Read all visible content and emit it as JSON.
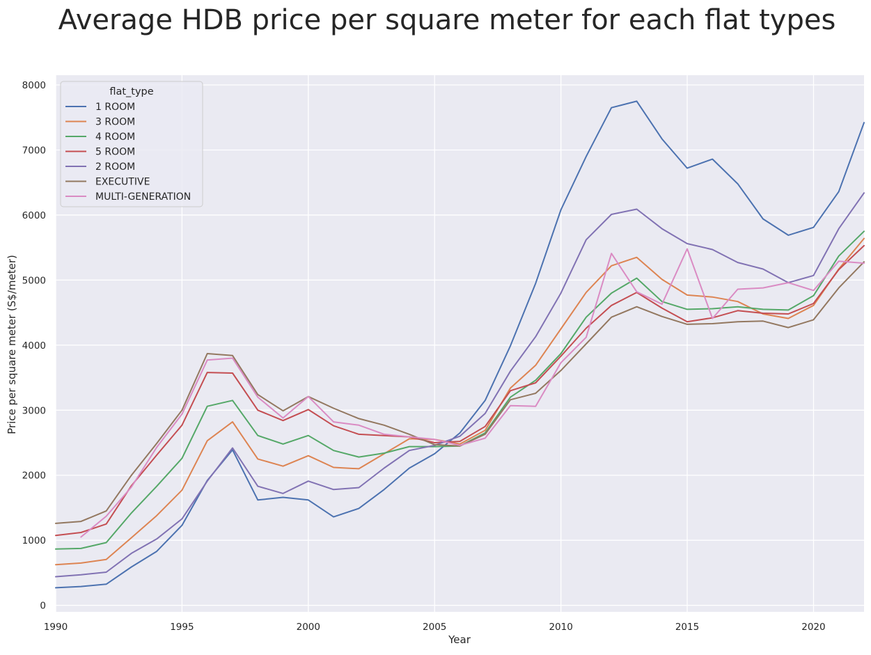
{
  "chart_data": {
    "type": "line",
    "title": "Average HDB price per square meter for each flat types",
    "xlabel": "Year",
    "ylabel": "Price per square meter (S$/meter)",
    "xlim": [
      1990,
      2022
    ],
    "ylim": [
      -100,
      8150
    ],
    "x_ticks": [
      1990,
      1995,
      2000,
      2005,
      2010,
      2015,
      2020
    ],
    "y_ticks": [
      0,
      1000,
      2000,
      3000,
      4000,
      5000,
      6000,
      7000,
      8000
    ],
    "grid": true,
    "legend_title": "flat_type",
    "legend_position": "top-left",
    "x": [
      1990,
      1991,
      1992,
      1993,
      1994,
      1995,
      1996,
      1997,
      1998,
      1999,
      2000,
      2001,
      2002,
      2003,
      2004,
      2005,
      2006,
      2007,
      2008,
      2009,
      2010,
      2011,
      2012,
      2013,
      2014,
      2015,
      2016,
      2017,
      2018,
      2019,
      2020,
      2021,
      2022
    ],
    "series": [
      {
        "name": "1 ROOM",
        "color": "#4c72b0",
        "values": [
          270,
          290,
          325,
          590,
          830,
          1230,
          1920,
          2390,
          1620,
          1660,
          1620,
          1360,
          1490,
          1780,
          2110,
          2330,
          2650,
          3150,
          3990,
          4950,
          6080,
          6900,
          7650,
          7750,
          7170,
          6720,
          6860,
          6480,
          5940,
          5690,
          5810,
          6360,
          7420
        ]
      },
      {
        "name": "3 ROOM",
        "color": "#dd8452",
        "values": [
          625,
          650,
          705,
          1040,
          1380,
          1770,
          2530,
          2820,
          2250,
          2140,
          2300,
          2120,
          2100,
          2330,
          2560,
          2550,
          2480,
          2690,
          3340,
          3690,
          4250,
          4810,
          5220,
          5350,
          5010,
          4770,
          4740,
          4670,
          4480,
          4410,
          4610,
          5170,
          5640
        ]
      },
      {
        "name": "4 ROOM",
        "color": "#55a868",
        "values": [
          865,
          875,
          965,
          1420,
          1830,
          2260,
          3060,
          3150,
          2610,
          2480,
          2610,
          2380,
          2280,
          2340,
          2440,
          2440,
          2450,
          2650,
          3200,
          3460,
          3870,
          4430,
          4800,
          5030,
          4670,
          4550,
          4560,
          4590,
          4550,
          4540,
          4760,
          5370,
          5750
        ]
      },
      {
        "name": "5 ROOM",
        "color": "#c44e52",
        "values": [
          1075,
          1120,
          1250,
          1840,
          2310,
          2770,
          3580,
          3570,
          3000,
          2840,
          3010,
          2760,
          2630,
          2610,
          2590,
          2500,
          2520,
          2750,
          3300,
          3420,
          3830,
          4260,
          4610,
          4810,
          4570,
          4360,
          4420,
          4530,
          4490,
          4480,
          4640,
          5160,
          5530
        ]
      },
      {
        "name": "2 ROOM",
        "color": "#8172b3",
        "values": [
          440,
          470,
          510,
          800,
          1020,
          1330,
          1910,
          2420,
          1830,
          1720,
          1910,
          1780,
          1810,
          2110,
          2380,
          2460,
          2600,
          2950,
          3600,
          4130,
          4800,
          5620,
          6010,
          6090,
          5790,
          5560,
          5470,
          5270,
          5170,
          4960,
          5070,
          5790,
          6340
        ]
      },
      {
        "name": "EXECUTIVE",
        "color": "#937860",
        "values": [
          1260,
          1290,
          1450,
          2000,
          2490,
          3000,
          3870,
          3840,
          3240,
          2990,
          3210,
          3030,
          2870,
          2770,
          2630,
          2470,
          2450,
          2630,
          3160,
          3260,
          3610,
          4020,
          4430,
          4590,
          4440,
          4320,
          4330,
          4360,
          4370,
          4270,
          4390,
          4880,
          5280
        ]
      },
      {
        "name": "MULTI-GENERATION",
        "color": "#da8bc3",
        "values": [
          null,
          1050,
          1370,
          1820,
          2430,
          2940,
          3770,
          3800,
          3200,
          2880,
          3210,
          2820,
          2770,
          2630,
          2590,
          2550,
          2460,
          2570,
          3070,
          3060,
          3730,
          4120,
          5410,
          4820,
          4630,
          5480,
          4410,
          4860,
          4880,
          4960,
          4840,
          5290,
          5260
        ]
      }
    ]
  }
}
